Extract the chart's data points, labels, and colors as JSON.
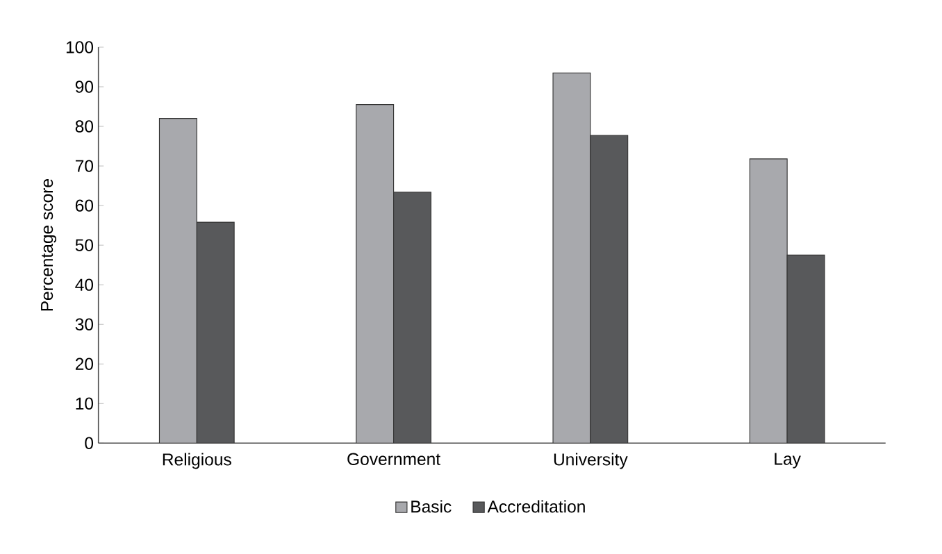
{
  "chart_data": {
    "type": "bar",
    "ylabel": "Percentage score",
    "categories": [
      "Religious",
      "Government",
      "University",
      "Lay"
    ],
    "series": [
      {
        "name": "Basic",
        "color": "#a8a9ad",
        "values": [
          82,
          85.5,
          93.5,
          71.8
        ]
      },
      {
        "name": "Accreditation",
        "color": "#58595b",
        "values": [
          55.8,
          63.4,
          77.7,
          47.5
        ]
      }
    ],
    "ylim": [
      0,
      100
    ],
    "yticks": [
      0,
      10,
      20,
      30,
      40,
      50,
      60,
      70,
      80,
      90,
      100
    ],
    "legend": "bottom",
    "grid": false
  }
}
